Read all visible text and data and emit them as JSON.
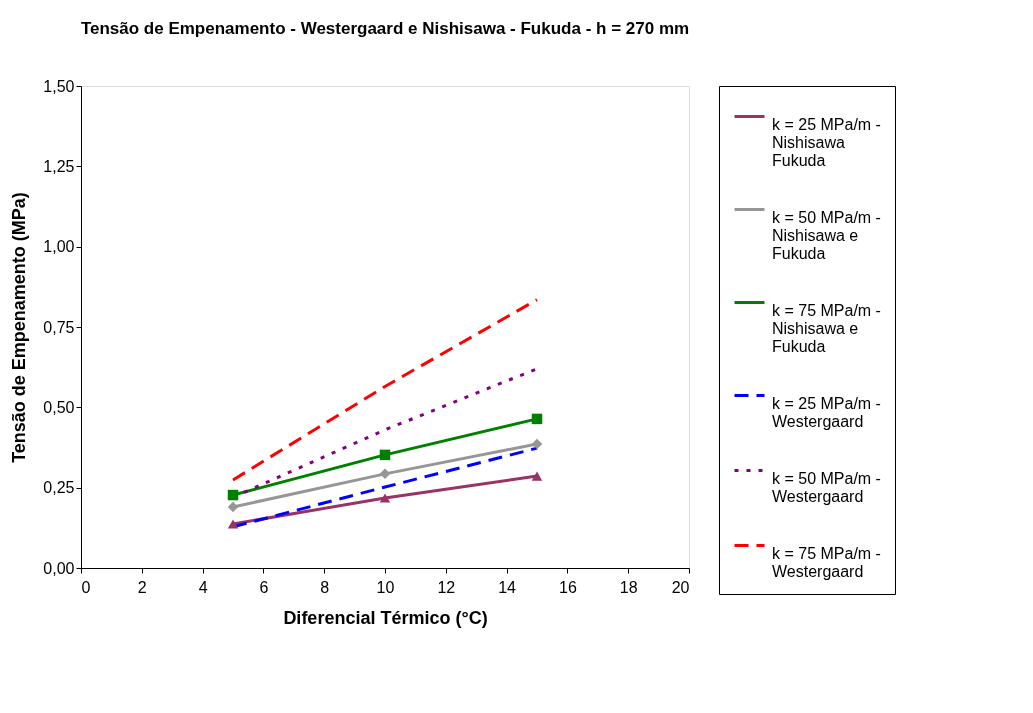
{
  "chart_data": {
    "type": "line",
    "title": "Tensão de Empenamento - Westergaard e Nishisawa - Fukuda - h = 270 mm",
    "xlabel": "Diferencial Térmico (°C)",
    "ylabel": "Tensão de Empenamento (MPa)",
    "x": [
      5,
      10,
      15
    ],
    "series": [
      {
        "name": "k = 25 MPa/m - Nishisawa Fukuda",
        "color": "#993366",
        "marker": "triangle",
        "line_style": "solid",
        "values": [
          0.137,
          0.218,
          0.286
        ]
      },
      {
        "name": "k = 50 MPa/m - Nishisawa e Fukuda",
        "color": "#969696",
        "marker": "diamond",
        "line_style": "solid",
        "values": [
          0.19,
          0.293,
          0.386
        ]
      },
      {
        "name": "k = 75 MPa/m - Nishisawa e Fukuda",
        "color": "#008000",
        "marker": "square",
        "line_style": "solid",
        "values": [
          0.227,
          0.352,
          0.464
        ]
      },
      {
        "name": "k = 25 MPa/m - Westergaard",
        "color": "#0000ff",
        "marker": "none",
        "line_style": "dashed",
        "values": [
          0.128,
          0.252,
          0.373
        ]
      },
      {
        "name": "k = 50 MPa/m - Westergaard",
        "color": "#800080",
        "marker": "none",
        "line_style": "dotted",
        "values": [
          0.22,
          0.43,
          0.62
        ]
      },
      {
        "name": "k = 75 MPa/m - Westergaard",
        "color": "#ff0000",
        "marker": "none",
        "line_style": "dashed",
        "values": [
          0.274,
          0.565,
          0.835
        ]
      }
    ],
    "xlim": [
      0,
      20
    ],
    "xticks": [
      0,
      2,
      4,
      6,
      8,
      10,
      12,
      14,
      16,
      18,
      20
    ],
    "ylim": [
      0,
      1.5
    ],
    "yticks": [
      {
        "value": 0,
        "label": "0,00"
      },
      {
        "value": 0.25,
        "label": "0,25"
      },
      {
        "value": 0.5,
        "label": "0,50"
      },
      {
        "value": 0.75,
        "label": "0,75"
      },
      {
        "value": 1.0,
        "label": "1,00"
      },
      {
        "value": 1.25,
        "label": "1,25"
      },
      {
        "value": 1.5,
        "label": "1,50"
      }
    ],
    "grid": false,
    "legend": "right"
  }
}
